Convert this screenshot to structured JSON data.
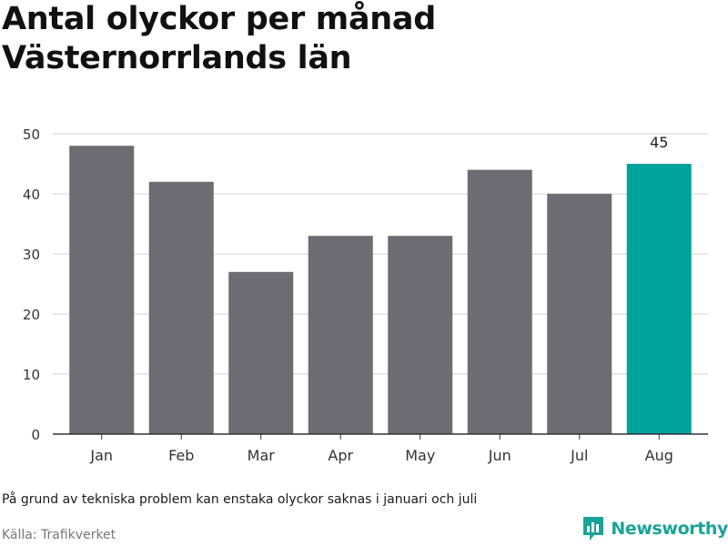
{
  "title": "Antal olyckor per månad Västernorrlands län",
  "note": "På grund av tekniska problem kan enstaka olyckor saknas i januari och juli",
  "source": "Källa: Trafikverket",
  "brand": {
    "name": "Newsworthy",
    "icon": "newsworthy-logo-icon",
    "color": "#1aa398"
  },
  "colors": {
    "bar": "#6d6c72",
    "highlight": "#00a39a",
    "grid": "#d9d9d9",
    "axis": "#333333"
  },
  "chart_data": {
    "type": "bar",
    "categories": [
      "Jan",
      "Feb",
      "Mar",
      "Apr",
      "May",
      "Jun",
      "Jul",
      "Aug"
    ],
    "values": [
      48,
      42,
      27,
      33,
      33,
      44,
      40,
      45
    ],
    "highlight_index": 7,
    "data_labels": [
      {
        "index": 7,
        "text": "45"
      }
    ],
    "yticks": [
      0,
      10,
      20,
      30,
      40,
      50
    ],
    "ylim": [
      0,
      50
    ],
    "grid": true
  }
}
